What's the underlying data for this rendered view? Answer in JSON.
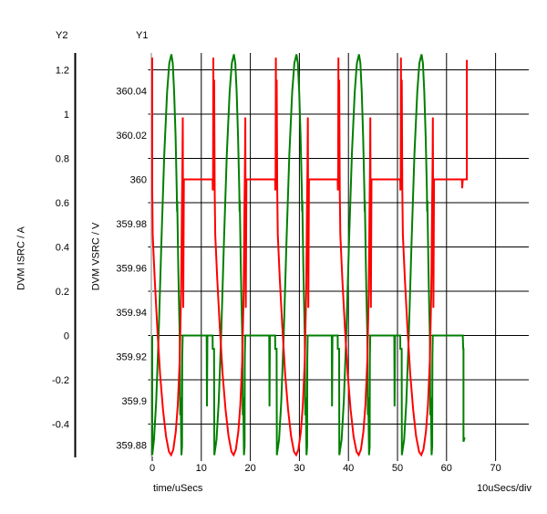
{
  "window": {
    "background": "#ffffff",
    "header": {
      "y2_label": "Y2",
      "y1_label": "Y1"
    },
    "bottom": {
      "x_title": "time/uSecs",
      "per_div_label": "10uSecs/div"
    }
  },
  "y2_axis": {
    "title": "DVM ISRC / A",
    "tick_labels": [
      "1.2",
      "1",
      "0.8",
      "0.6",
      "0.4",
      "0.2",
      "0",
      "-0.2",
      "-0.4"
    ],
    "tick_values": [
      1.2,
      1.0,
      0.8,
      0.6,
      0.4,
      0.2,
      0.0,
      -0.2,
      -0.4
    ],
    "axis_line_color": "#000000"
  },
  "y1_axis": {
    "title": "DVM VSRC / V",
    "tick_labels": [
      "360.04",
      "360.02",
      "360",
      "359.98",
      "359.96",
      "359.94",
      "359.92",
      "359.9",
      "359.88"
    ],
    "tick_values": [
      360.04,
      360.02,
      360.0,
      359.98,
      359.96,
      359.94,
      359.92,
      359.9,
      359.88
    ],
    "axis_line_color": "#c0c0c0"
  },
  "x_axis": {
    "title": "time/uSecs",
    "tick_labels": [
      "0",
      "10",
      "20",
      "30",
      "40",
      "50",
      "60",
      "70"
    ],
    "tick_values": [
      0,
      10,
      20,
      30,
      40,
      50,
      60,
      70
    ],
    "per_div": "10uSecs/div"
  },
  "chart_data": {
    "type": "line",
    "title": "",
    "xlabel": "time/uSecs",
    "x_range_uSecs": [
      0,
      77
    ],
    "x_ticks": [
      0,
      10,
      20,
      30,
      40,
      50,
      60,
      70
    ],
    "x_per_div": "10uSecs/div",
    "grid": "on",
    "grid_color": "#000000",
    "y2_range_A": [
      -0.546,
      1.276
    ],
    "y1_range_V": [
      359.8748,
      360.0571
    ],
    "period_uSecs": 12.75,
    "cycle_starts_uSecs": [
      0,
      12.75,
      25.5,
      38.25,
      51
    ],
    "series": [
      {
        "name": "DVM ISRC",
        "unit": "A",
        "axis": "Y2",
        "color": "#008000",
        "description": "Pulsed input current: flat at 0 A, sine-like arch to ~1.27 A each cycle, with negative dips to ~-0.54 A before and after each arch",
        "cycle_points_dt_value": [
          [
            -1.65,
            0
          ],
          [
            -1.6,
            -0.32
          ],
          [
            -1.5,
            0
          ],
          [
            -0.45,
            0
          ],
          [
            -0.42,
            -0.06
          ],
          [
            -0.15,
            -0.06
          ],
          [
            -0.1,
            -0.54
          ],
          [
            0.35,
            -0.47
          ],
          [
            0.8,
            -0.3
          ],
          [
            1.3,
            0
          ],
          [
            1.88,
            0.43
          ],
          [
            2.46,
            0.82
          ],
          [
            3.03,
            1.1
          ],
          [
            3.47,
            1.23
          ],
          [
            3.9,
            1.27
          ],
          [
            4.18,
            1.23
          ],
          [
            4.47,
            1.1
          ],
          [
            4.75,
            0.9
          ],
          [
            5.0,
            0.65
          ],
          [
            5.05,
            0.56
          ],
          [
            5.1,
            0.61
          ],
          [
            5.3,
            0.32
          ],
          [
            5.45,
            0.15
          ],
          [
            5.6,
            0
          ],
          [
            5.7,
            -0.36
          ],
          [
            5.8,
            -0.28
          ],
          [
            5.95,
            -0.54
          ],
          [
            6.08,
            -0.5
          ],
          [
            6.12,
            -0.1
          ],
          [
            6.2,
            0
          ]
        ],
        "tail_points_t_value": [
          [
            63.3,
            0
          ],
          [
            63.4,
            -0.06
          ],
          [
            63.45,
            -0.06
          ],
          [
            63.45,
            -0.48
          ],
          [
            63.7,
            -0.46
          ]
        ]
      },
      {
        "name": "DVM VSRC",
        "unit": "V",
        "axis": "Y1",
        "color": "#ff0000",
        "description": "360 V source: flat at 360 V, switching spikes to ~360.055 V at each cycle start, droop dip to ~359.8755 V during conduction, overshoot ~360.03 V on recovery",
        "cycle_points_dt_value": [
          [
            -0.45,
            360
          ],
          [
            -0.4,
            359.995
          ],
          [
            -0.35,
            360
          ],
          [
            -0.3,
            360.055
          ],
          [
            -0.22,
            359.998
          ],
          [
            -0.12,
            360.045
          ],
          [
            -0.02,
            359.995
          ],
          [
            0.1,
            359.975
          ],
          [
            0.5,
            359.955
          ],
          [
            1.0,
            359.934
          ],
          [
            1.6,
            359.912
          ],
          [
            2.2,
            359.896
          ],
          [
            2.8,
            359.884
          ],
          [
            3.4,
            359.877
          ],
          [
            3.85,
            359.8755
          ],
          [
            4.3,
            359.878
          ],
          [
            4.8,
            359.886
          ],
          [
            5.2,
            359.898
          ],
          [
            5.6,
            359.918
          ],
          [
            5.9,
            359.95
          ],
          [
            6.05,
            359.985
          ],
          [
            6.15,
            360.007
          ],
          [
            6.22,
            360.028
          ],
          [
            6.32,
            359.942
          ],
          [
            6.45,
            360
          ]
        ],
        "tail_points_t_value": [
          [
            63.15,
            360
          ],
          [
            63.2,
            359.996
          ],
          [
            63.3,
            360
          ],
          [
            64.15,
            360
          ],
          [
            64.15,
            360.054
          ]
        ]
      }
    ]
  }
}
